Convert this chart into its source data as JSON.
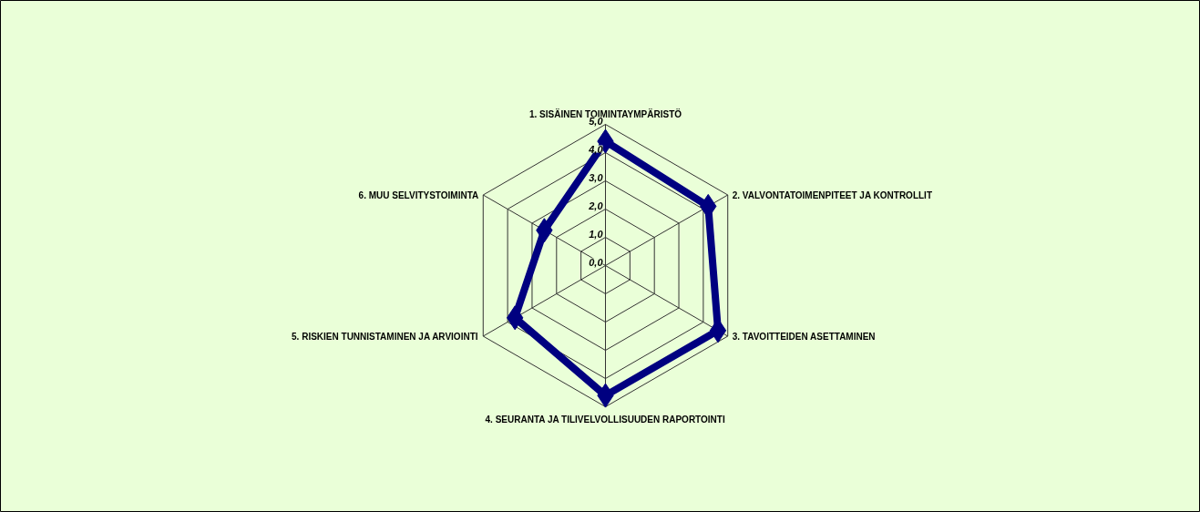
{
  "chart_data": {
    "type": "radar",
    "categories": [
      "1. SISÄINEN TOIMINTAYMPÄRISTÖ",
      "2. VALVONTATOIMENPITEET JA KONTROLLIT",
      "3. TAVOITTEIDEN ASETTAMINEN",
      "4. SEURANTA JA TILIVELVOLLISUUDEN RAPORTOINTI",
      "5. RISKIEN TUNNISTAMINEN JA ARVIOINTI",
      "6. MUU SELVITYSTOIMINTA"
    ],
    "series": [
      {
        "color": "#000080",
        "values": [
          4.4,
          4.2,
          4.6,
          4.6,
          3.7,
          2.5
        ]
      }
    ],
    "ylim": [
      0,
      5
    ],
    "yticks": [
      {
        "value": 0,
        "label": "0,0"
      },
      {
        "value": 1,
        "label": "1,0"
      },
      {
        "value": 2,
        "label": "2,0"
      },
      {
        "value": 3,
        "label": "3,0"
      },
      {
        "value": 4,
        "label": "4,0"
      },
      {
        "value": 5,
        "label": "5,0"
      }
    ],
    "grid": true,
    "marker": "diamond",
    "line_style": "solid"
  }
}
